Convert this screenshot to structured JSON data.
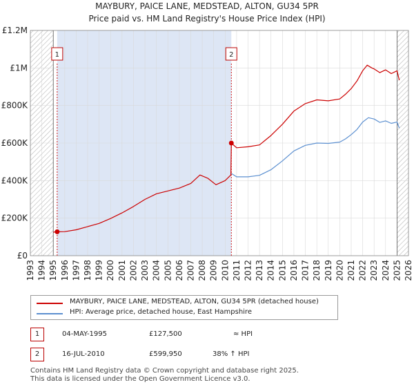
{
  "title_line1": "MAYBURY, PAICE LANE, MEDSTEAD, ALTON, GU34 5PR",
  "title_line2": "Price paid vs. HM Land Registry's House Price Index (HPI)",
  "legend": {
    "property": "MAYBURY, PAICE LANE, MEDSTEAD, ALTON, GU34 5PR (detached house)",
    "hpi": "HPI: Average price, detached house, East Hampshire"
  },
  "transactions": [
    {
      "num": "1",
      "date": "04-MAY-1995",
      "price": "£127,500",
      "hpi": "≈ HPI"
    },
    {
      "num": "2",
      "date": "16-JUL-2010",
      "price": "£599,950",
      "hpi": "38% ↑ HPI"
    }
  ],
  "footer": {
    "line1": "Contains HM Land Registry data © Crown copyright and database right 2025.",
    "line2": "This data is licensed under the Open Government Licence v3.0."
  },
  "colors": {
    "property": "#cc0000",
    "hpi": "#5b8fd0",
    "shade": "#dde6f5",
    "grid": "#d9d9d9"
  },
  "chart_data": {
    "type": "line",
    "xlabel": "",
    "ylabel": "",
    "xlim": [
      1993,
      2026
    ],
    "ylim": [
      0,
      1200000
    ],
    "x_ticks": [
      "1993",
      "1994",
      "1995",
      "1996",
      "1997",
      "1998",
      "1999",
      "2000",
      "2001",
      "2002",
      "2003",
      "2004",
      "2005",
      "2006",
      "2007",
      "2008",
      "2009",
      "2010",
      "2011",
      "2012",
      "2013",
      "2014",
      "2015",
      "2016",
      "2017",
      "2018",
      "2019",
      "2020",
      "2021",
      "2022",
      "2023",
      "2024",
      "2025",
      "2026"
    ],
    "y_ticks": [
      {
        "value": 0,
        "label": "£0"
      },
      {
        "value": 200000,
        "label": "£200K"
      },
      {
        "value": 400000,
        "label": "£400K"
      },
      {
        "value": 600000,
        "label": "£600K"
      },
      {
        "value": 800000,
        "label": "£800K"
      },
      {
        "value": 1000000,
        "label": "£1M"
      },
      {
        "value": 1200000,
        "label": "£1.2M"
      }
    ],
    "shaded_regions": [
      [
        1995.34,
        2010.54
      ]
    ],
    "hatched_regions": [
      [
        1993,
        1995.0
      ],
      [
        2025.0,
        2026
      ]
    ],
    "markers": [
      {
        "label": "1",
        "x": 1995.34
      },
      {
        "label": "2",
        "x": 2010.54
      }
    ],
    "sales": [
      {
        "x": 1995.34,
        "y": 127500
      },
      {
        "x": 2010.54,
        "y": 599950
      }
    ],
    "series": [
      {
        "name": "MAYBURY, PAICE LANE, MEDSTEAD, ALTON, GU34 5PR (detached house)",
        "x": [
          1995.0,
          1995.34,
          1996,
          1997,
          1998,
          1999,
          2000,
          2001,
          2002,
          2003,
          2004,
          2005,
          2006,
          2007,
          2007.8,
          2008.5,
          2009.2,
          2010.0,
          2010.5,
          2010.54,
          2011,
          2012,
          2013,
          2014,
          2015,
          2016,
          2017,
          2018,
          2019,
          2020,
          2020.5,
          2021,
          2021.5,
          2022,
          2022.4,
          2022.8,
          2023,
          2023.5,
          2024,
          2024.5,
          2025,
          2025.2
        ],
        "y": [
          125000,
          127500,
          128000,
          138000,
          155000,
          172000,
          198000,
          228000,
          262000,
          300000,
          330000,
          345000,
          360000,
          385000,
          430000,
          412000,
          378000,
          400000,
          430000,
          599950,
          575000,
          580000,
          590000,
          640000,
          700000,
          770000,
          810000,
          830000,
          825000,
          835000,
          860000,
          890000,
          930000,
          985000,
          1015000,
          1000000,
          995000,
          975000,
          990000,
          970000,
          985000,
          935000
        ]
      },
      {
        "name": "HPI: Average price, detached house, East Hampshire",
        "x": [
          2010.54,
          2011,
          2012,
          2013,
          2014,
          2015,
          2016,
          2017,
          2018,
          2019,
          2020,
          2020.5,
          2021,
          2021.5,
          2022,
          2022.5,
          2023,
          2023.5,
          2024,
          2024.5,
          2025,
          2025.2
        ],
        "y": [
          438000,
          420000,
          420000,
          428000,
          458000,
          505000,
          558000,
          588000,
          600000,
          598000,
          605000,
          622000,
          645000,
          672000,
          712000,
          735000,
          728000,
          710000,
          718000,
          705000,
          712000,
          680000
        ]
      }
    ]
  }
}
